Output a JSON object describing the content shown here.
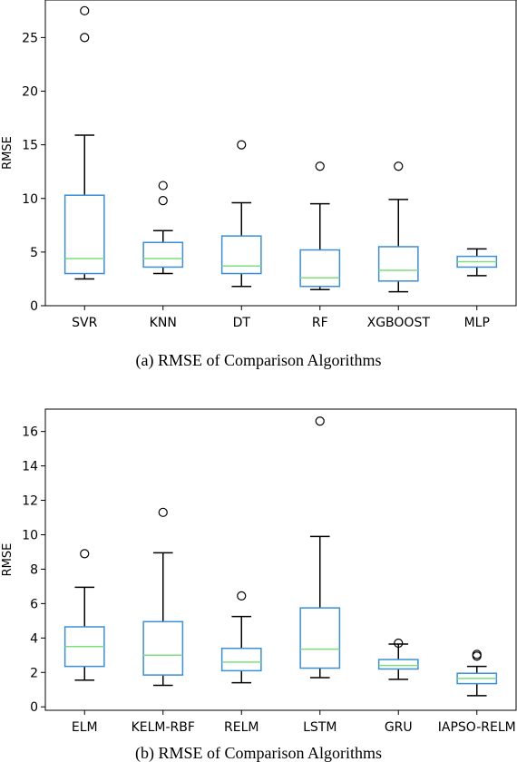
{
  "chart_data": [
    {
      "type": "box",
      "caption": "(a) RMSE of Comparison Algorithms",
      "ylabel": "RMSE",
      "ylim": [
        0,
        28.5
      ],
      "yticks": [
        0,
        5,
        10,
        15,
        20,
        25
      ],
      "categories": [
        "SVR",
        "KNN",
        "DT",
        "RF",
        "XGBOOST",
        "MLP"
      ],
      "colors": {
        "box": "#3a8fd8",
        "median": "#7ae07a",
        "whisker": "#000000"
      },
      "boxes": [
        {
          "whislo": 2.5,
          "q1": 3.0,
          "med": 4.4,
          "q3": 10.3,
          "whishi": 15.9,
          "fliers": [
            25.0,
            27.5
          ]
        },
        {
          "whislo": 3.0,
          "q1": 3.6,
          "med": 4.4,
          "q3": 5.9,
          "whishi": 7.0,
          "fliers": [
            9.8,
            11.2
          ]
        },
        {
          "whislo": 1.8,
          "q1": 3.0,
          "med": 3.7,
          "q3": 6.5,
          "whishi": 9.6,
          "fliers": [
            15.0
          ]
        },
        {
          "whislo": 1.5,
          "q1": 1.8,
          "med": 2.6,
          "q3": 5.2,
          "whishi": 9.5,
          "fliers": [
            13.0
          ]
        },
        {
          "whislo": 1.3,
          "q1": 2.3,
          "med": 3.3,
          "q3": 5.5,
          "whishi": 9.9,
          "fliers": [
            13.0
          ]
        },
        {
          "whislo": 2.8,
          "q1": 3.6,
          "med": 4.1,
          "q3": 4.6,
          "whishi": 5.3,
          "fliers": []
        }
      ]
    },
    {
      "type": "box",
      "caption": "(b) RMSE of Comparison Algorithms",
      "ylabel": "RMSE",
      "ylim": [
        -0.2,
        17.3
      ],
      "yticks": [
        0,
        2,
        4,
        6,
        8,
        10,
        12,
        14,
        16
      ],
      "categories": [
        "ELM",
        "KELM-RBF",
        "RELM",
        "LSTM",
        "GRU",
        "IAPSO-RELM"
      ],
      "colors": {
        "box": "#3a8fd8",
        "median": "#7ae07a",
        "whisker": "#000000"
      },
      "boxes": [
        {
          "whislo": 1.55,
          "q1": 2.35,
          "med": 3.5,
          "q3": 4.65,
          "whishi": 6.95,
          "fliers": [
            8.9
          ]
        },
        {
          "whislo": 1.25,
          "q1": 1.85,
          "med": 3.0,
          "q3": 4.95,
          "whishi": 8.95,
          "fliers": [
            11.3
          ]
        },
        {
          "whislo": 1.4,
          "q1": 2.1,
          "med": 2.6,
          "q3": 3.4,
          "whishi": 5.25,
          "fliers": [
            6.45
          ]
        },
        {
          "whislo": 1.7,
          "q1": 2.25,
          "med": 3.35,
          "q3": 5.75,
          "whishi": 9.9,
          "fliers": [
            16.6
          ]
        },
        {
          "whislo": 1.6,
          "q1": 2.2,
          "med": 2.4,
          "q3": 2.75,
          "whishi": 3.65,
          "fliers": [
            3.7
          ]
        },
        {
          "whislo": 0.65,
          "q1": 1.35,
          "med": 1.65,
          "q3": 1.95,
          "whishi": 2.35,
          "fliers": [
            2.95,
            3.05
          ]
        }
      ]
    }
  ]
}
